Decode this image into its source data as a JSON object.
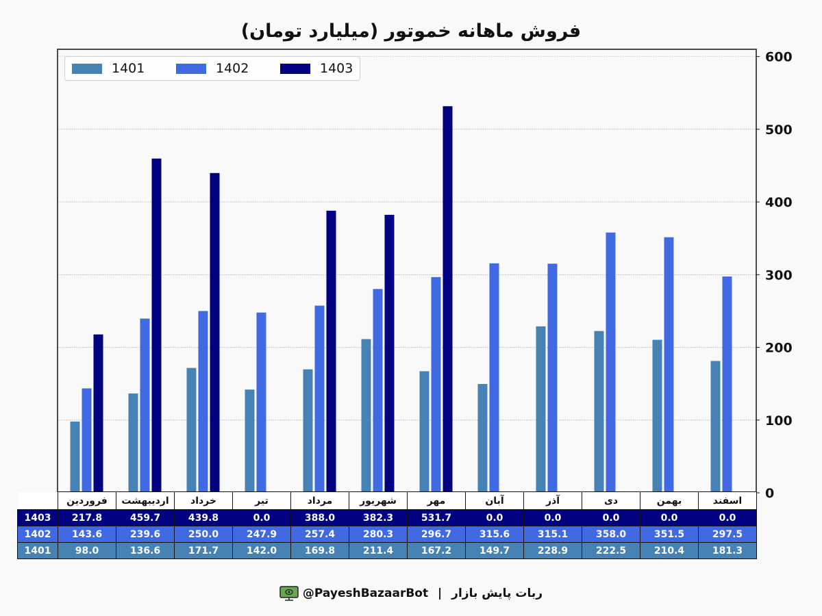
{
  "chart_data": {
    "type": "bar",
    "title": "فروش ماهانه خموتور (میلیارد تومان)",
    "categories": [
      "فروردین",
      "اردیبهشت",
      "خرداد",
      "تیر",
      "مرداد",
      "شهریور",
      "مهر",
      "آبان",
      "آذر",
      "دی",
      "بهمن",
      "اسفند"
    ],
    "series": [
      {
        "name": "1401",
        "color": "#4682b4",
        "values": [
          98.0,
          136.6,
          171.7,
          142.0,
          169.8,
          211.4,
          167.2,
          149.7,
          228.9,
          222.5,
          210.4,
          181.3
        ]
      },
      {
        "name": "1402",
        "color": "#4169e1",
        "values": [
          143.6,
          239.6,
          250.0,
          247.9,
          257.4,
          280.3,
          296.7,
          315.6,
          315.1,
          358.0,
          351.5,
          297.5
        ]
      },
      {
        "name": "1403",
        "color": "#000080",
        "values": [
          217.8,
          459.7,
          439.8,
          0.0,
          388.0,
          382.3,
          531.7,
          0.0,
          0.0,
          0.0,
          0.0,
          0.0
        ]
      }
    ],
    "ylim": [
      0,
      610
    ],
    "yticks": [
      0,
      100,
      200,
      300,
      400,
      500,
      600
    ],
    "y_axis_side": "right",
    "grid": true,
    "legend_position": "top-left"
  },
  "table": {
    "rows": [
      {
        "label": "1403",
        "values": [
          "217.8",
          "459.7",
          "439.8",
          "0.0",
          "388.0",
          "382.3",
          "531.7",
          "0.0",
          "0.0",
          "0.0",
          "0.0",
          "0.0"
        ]
      },
      {
        "label": "1402",
        "values": [
          "143.6",
          "239.6",
          "250.0",
          "247.9",
          "257.4",
          "280.3",
          "296.7",
          "315.6",
          "315.1",
          "358.0",
          "351.5",
          "297.5"
        ]
      },
      {
        "label": "1401",
        "values": [
          "98.0",
          "136.6",
          "171.7",
          "142.0",
          "169.8",
          "211.4",
          "167.2",
          "149.7",
          "228.9",
          "222.5",
          "210.4",
          "181.3"
        ]
      }
    ]
  },
  "footer": {
    "handle": "@PayeshBazaarBot",
    "separator": "|",
    "bot_name": "ربات پایش بازار",
    "icon": "monitor-icon"
  }
}
